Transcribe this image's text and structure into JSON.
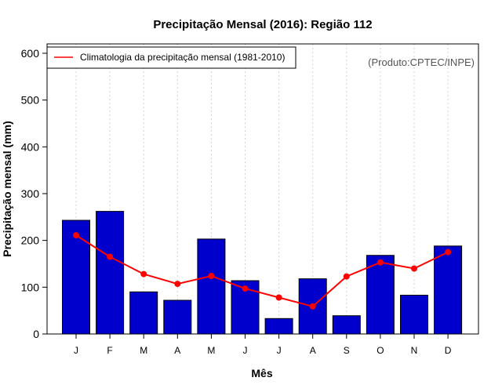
{
  "chart_data": {
    "type": "bar",
    "title": "Precipitação Mensal (2016): Região 112",
    "xlabel": "Mês",
    "ylabel": "Precipitação mensal (mm)",
    "ylim": [
      0,
      620
    ],
    "yticks": [
      0,
      100,
      200,
      300,
      400,
      500,
      600
    ],
    "categories": [
      "J",
      "F",
      "M",
      "A",
      "M",
      "J",
      "J",
      "A",
      "S",
      "O",
      "N",
      "D"
    ],
    "series": [
      {
        "name": "Precipitação mensal 2016",
        "type": "bar",
        "color": "#0000CC",
        "values": [
          243,
          262,
          90,
          72,
          203,
          114,
          33,
          118,
          39,
          168,
          83,
          188
        ]
      },
      {
        "name": "Climatologia da precipitação mensal (1981-2010)",
        "type": "line",
        "color": "#FF0000",
        "values": [
          211,
          165,
          128,
          107,
          124,
          97,
          78,
          59,
          123,
          153,
          140,
          175
        ]
      }
    ],
    "legend": {
      "position": "top-left",
      "entries": [
        "Climatologia da precipitação mensal (1981-2010)"
      ]
    },
    "annotation": "(Produto:CPTEC/INPE)",
    "grid": "vertical-dotted"
  }
}
